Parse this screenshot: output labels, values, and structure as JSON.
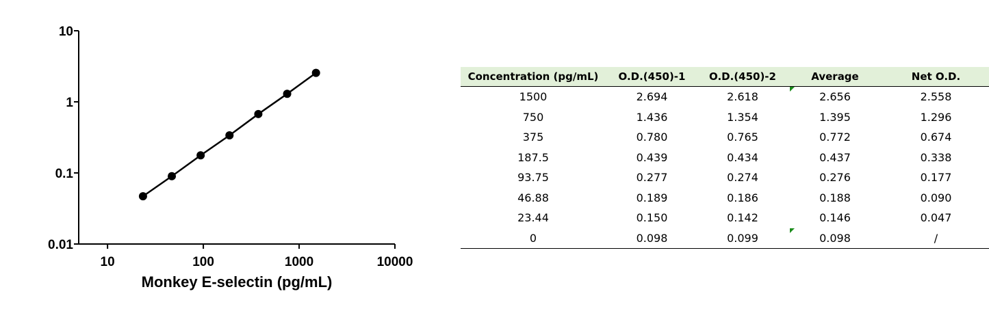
{
  "chart_data": {
    "type": "line",
    "x_label": "Monkey E-selectin (pg/mL)",
    "x": [
      23.44,
      46.88,
      93.75,
      187.5,
      375,
      750,
      1500
    ],
    "values": [
      0.047,
      0.09,
      0.177,
      0.338,
      0.674,
      1.296,
      2.558
    ],
    "color": "#000000",
    "xscale": "log",
    "yscale": "log",
    "xlim": [
      5,
      10000
    ],
    "ylim": [
      0.01,
      10
    ],
    "xticks": [
      10,
      100,
      1000,
      10000
    ],
    "yticks": [
      0.01,
      0.1,
      1,
      10
    ]
  },
  "table": {
    "header": [
      "Concentration (pg/mL)",
      "O.D.(450)-1",
      "O.D.(450)-2",
      "Average",
      "Net O.D."
    ],
    "rows": [
      [
        "1500",
        "2.694",
        "2.618",
        "2.656",
        "2.558"
      ],
      [
        "750",
        "1.436",
        "1.354",
        "1.395",
        "1.296"
      ],
      [
        "375",
        "0.780",
        "0.765",
        "0.772",
        "0.674"
      ],
      [
        "187.5",
        "0.439",
        "0.434",
        "0.437",
        "0.338"
      ],
      [
        "93.75",
        "0.277",
        "0.274",
        "0.276",
        "0.177"
      ],
      [
        "46.88",
        "0.189",
        "0.186",
        "0.188",
        "0.090"
      ],
      [
        "23.44",
        "0.150",
        "0.142",
        "0.146",
        "0.047"
      ],
      [
        "0",
        "0.098",
        "0.099",
        "0.098",
        "/"
      ]
    ]
  }
}
